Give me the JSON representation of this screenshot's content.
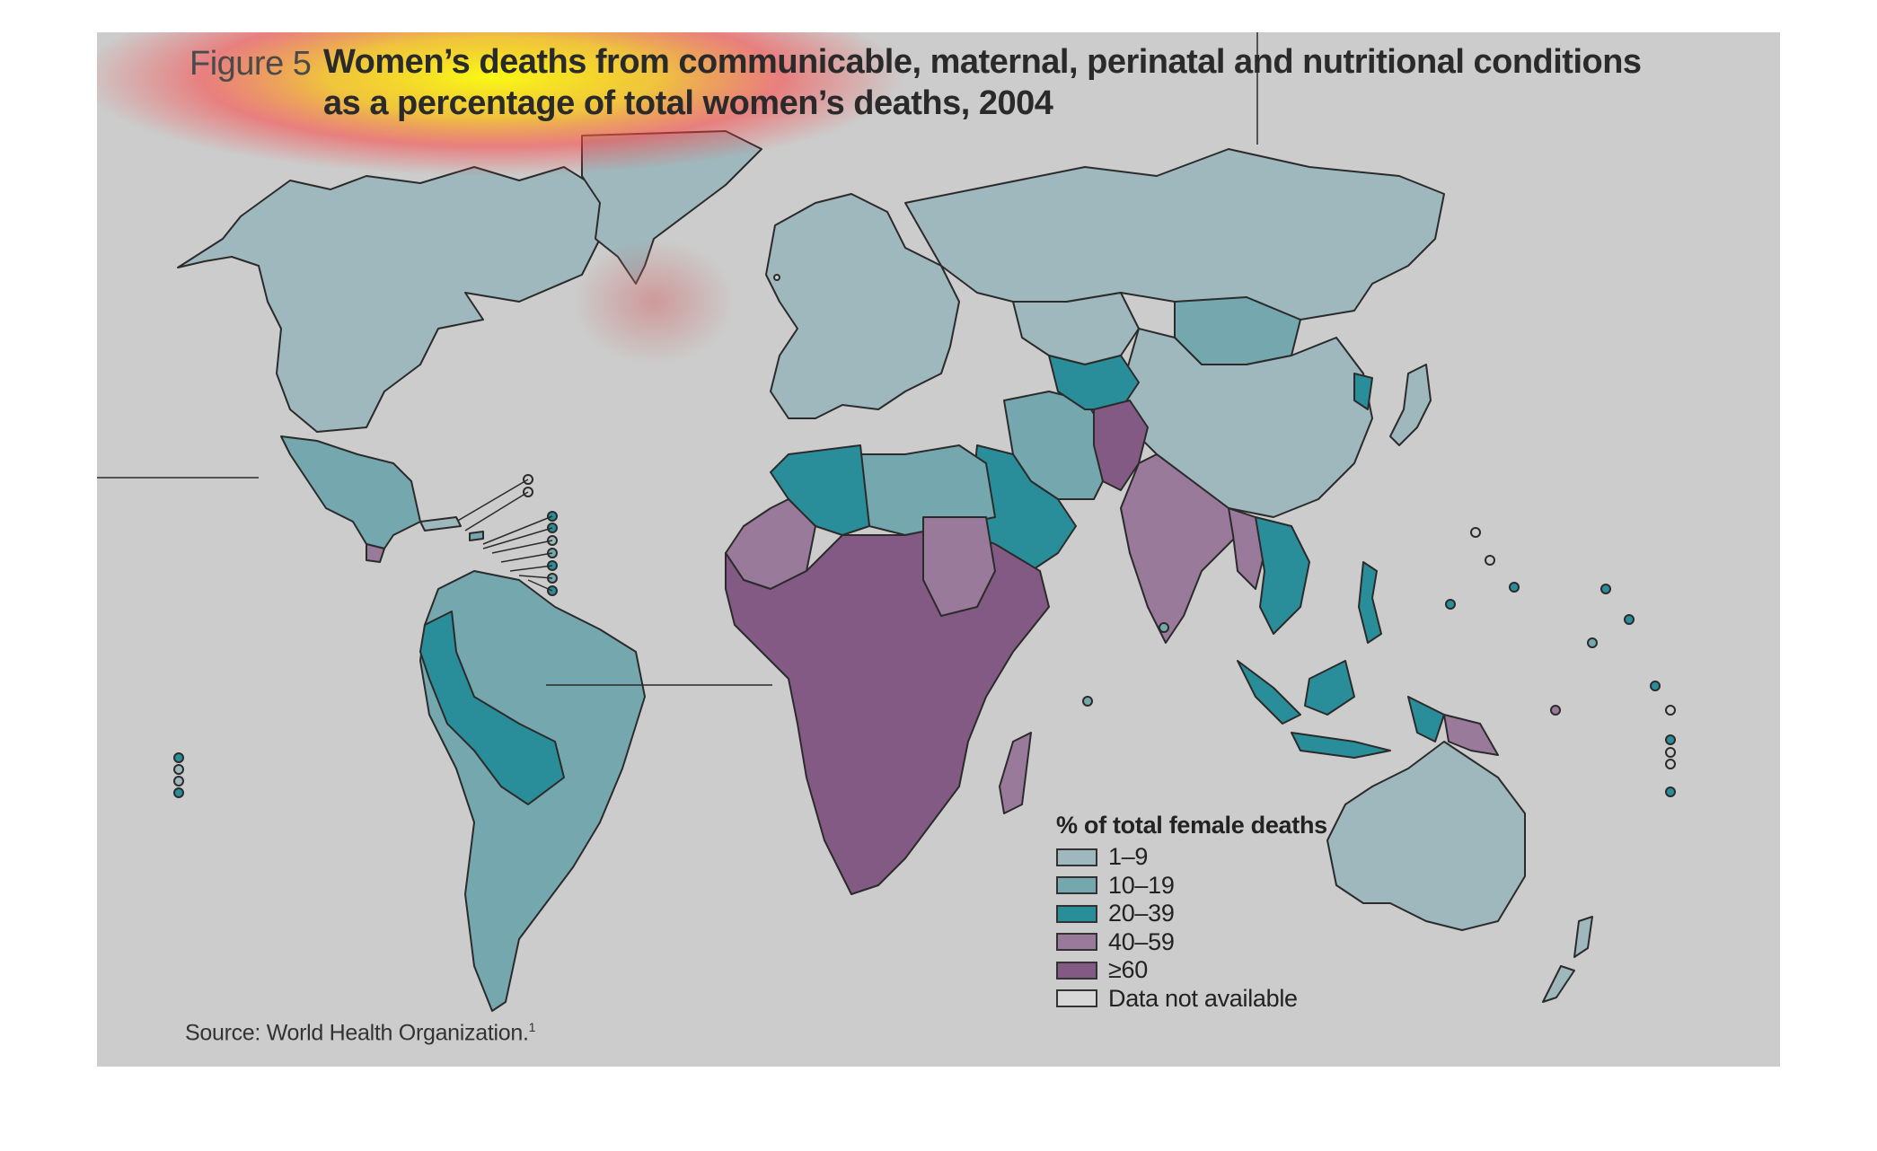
{
  "figure": {
    "label": "Figure 5",
    "title_line1": "Women’s deaths from communicable, maternal, perinatal and nutritional conditions",
    "title_line2": "as a percentage of total women’s deaths, 2004"
  },
  "legend": {
    "title": "% of total female deaths",
    "items": [
      {
        "label": "1–9",
        "color": "#9fb8bd"
      },
      {
        "label": "10–19",
        "color": "#74a8ae"
      },
      {
        "label": "20–39",
        "color": "#2a8e9a"
      },
      {
        "label": "40–59",
        "color": "#9a7a9a"
      },
      {
        "label": "≥60",
        "color": "#835a84"
      },
      {
        "label": "Data not available",
        "color": "#d8d8d8"
      }
    ]
  },
  "source": {
    "text": "Source: World Health Organization.",
    "ref": "1"
  },
  "map_regions": [
    {
      "name": "North America",
      "category": "1–9"
    },
    {
      "name": "Greenland",
      "category": "1–9"
    },
    {
      "name": "Mexico and Central America",
      "category": "10–19"
    },
    {
      "name": "South America",
      "category": "10–19"
    },
    {
      "name": "Andean countries",
      "category": "20–39"
    },
    {
      "name": "Europe",
      "category": "1–9"
    },
    {
      "name": "Russia",
      "category": "1–9"
    },
    {
      "name": "North Africa",
      "category": "10–19"
    },
    {
      "name": "Algeria",
      "category": "20–39"
    },
    {
      "name": "Sub-Saharan Africa",
      "category": "≥60"
    },
    {
      "name": "Sudan",
      "category": "40–59"
    },
    {
      "name": "Arabian Peninsula",
      "category": "20–39"
    },
    {
      "name": "Central Asia",
      "category": "1–9"
    },
    {
      "name": "Mongolia",
      "category": "10–19"
    },
    {
      "name": "China",
      "category": "1–9"
    },
    {
      "name": "South Asia",
      "category": "40–59"
    },
    {
      "name": "Afghanistan and Pakistan",
      "category": "≥60"
    },
    {
      "name": "Southeast Asia",
      "category": "20–39"
    },
    {
      "name": "Australia",
      "category": "1–9"
    },
    {
      "name": "Madagascar",
      "category": "40–59"
    },
    {
      "name": "Papua New Guinea",
      "category": "40–59"
    }
  ]
}
